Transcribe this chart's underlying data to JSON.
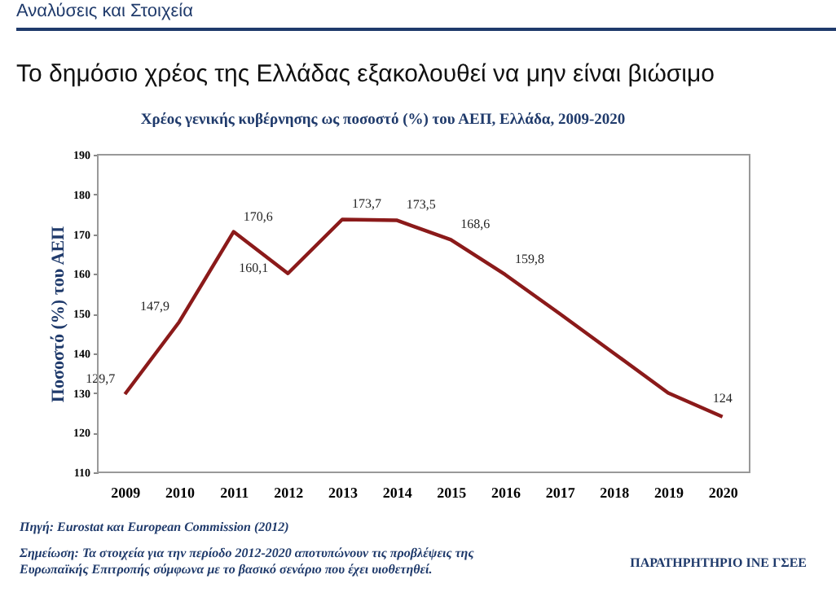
{
  "chart_data": {
    "type": "line",
    "title": "Χρέος γενικής κυβέρνησης ως ποσοστό (%) του ΑΕΠ, Ελλάδα, 2009-2020",
    "subtitle": "Το δημόσιο χρέος της Ελλάδας εξακολουθεί να μην είναι βιώσιμο",
    "ylabel": "Ποσοστό (%) του ΑΕΠ",
    "categories": [
      "2009",
      "2010",
      "2011",
      "2012",
      "2013",
      "2014",
      "2015",
      "2016",
      "2017",
      "2018",
      "2019",
      "2020"
    ],
    "series": [
      {
        "color": "#8b1a1a",
        "values": [
          129.7,
          147.9,
          170.6,
          160.1,
          173.7,
          173.5,
          168.6,
          159.8,
          150,
          140,
          130,
          124
        ],
        "value_labels": [
          "129,7",
          "147,9",
          "170,6",
          "160,1",
          "173,7",
          "173,5",
          "168,6",
          "159,8",
          null,
          null,
          null,
          "124"
        ]
      }
    ],
    "ylim": [
      110,
      190
    ],
    "yticks": [
      110,
      120,
      130,
      140,
      150,
      160,
      170,
      180,
      190
    ],
    "grid": false,
    "marker": "none",
    "line_style": "solid",
    "annotations": [
      "Αναλύσεις και Στοιχεία",
      "Πηγή: Eurostat και European Commission (2012)",
      "Σημείωση: Τα στοιχεία για την περίοδο 2012-2020 αποτυπώνουν τις προβλέψεις της",
      "Ευρωπαϊκής Επιτροπής σύμφωνα με το βασικό σενάριο που έχει υιοθετηθεί.",
      "ΠΑΡΑΤΗΡΗΤΗΡΙΟ ΙΝΕ ΓΣΕΕ"
    ]
  }
}
